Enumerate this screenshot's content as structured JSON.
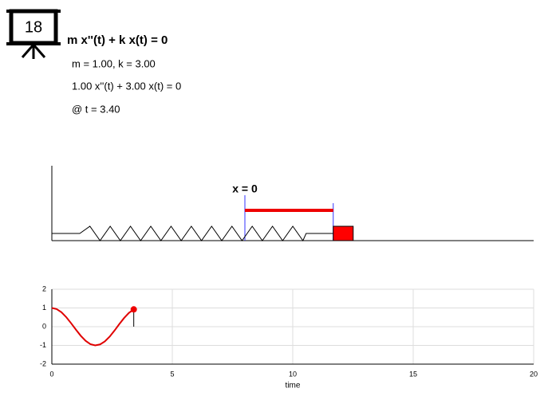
{
  "header": {
    "icon_label": "18",
    "equation": "m x''(t) + k x(t) = 0",
    "params": "m = 1.00, k = 3.00",
    "instance": "1.00 x''(t) + 3.00 x(t) = 0",
    "time": "@ t = 3.40"
  },
  "diagram": {
    "origin_label": "x = 0"
  },
  "chart_data": {
    "type": "line",
    "xlabel": "time",
    "x": [
      0,
      0.2,
      0.4,
      0.6,
      0.8,
      1.0,
      1.2,
      1.4,
      1.6,
      1.8,
      2.0,
      2.2,
      2.4,
      2.6,
      2.8,
      3.0,
      3.2,
      3.4
    ],
    "series": [
      {
        "color": "#e00000",
        "values": [
          1,
          0.941,
          0.769,
          0.506,
          0.184,
          -0.16,
          -0.486,
          -0.754,
          -0.933,
          -1.0,
          -0.948,
          -0.787,
          -0.532,
          -0.209,
          0.137,
          0.465,
          0.738,
          0.923
        ]
      }
    ],
    "xlim": [
      0,
      20
    ],
    "ylim": [
      -2,
      2
    ],
    "xticks": [
      0,
      5,
      10,
      15,
      20
    ],
    "yticks": [
      -2,
      -1,
      0,
      1,
      2
    ],
    "grid": true
  }
}
